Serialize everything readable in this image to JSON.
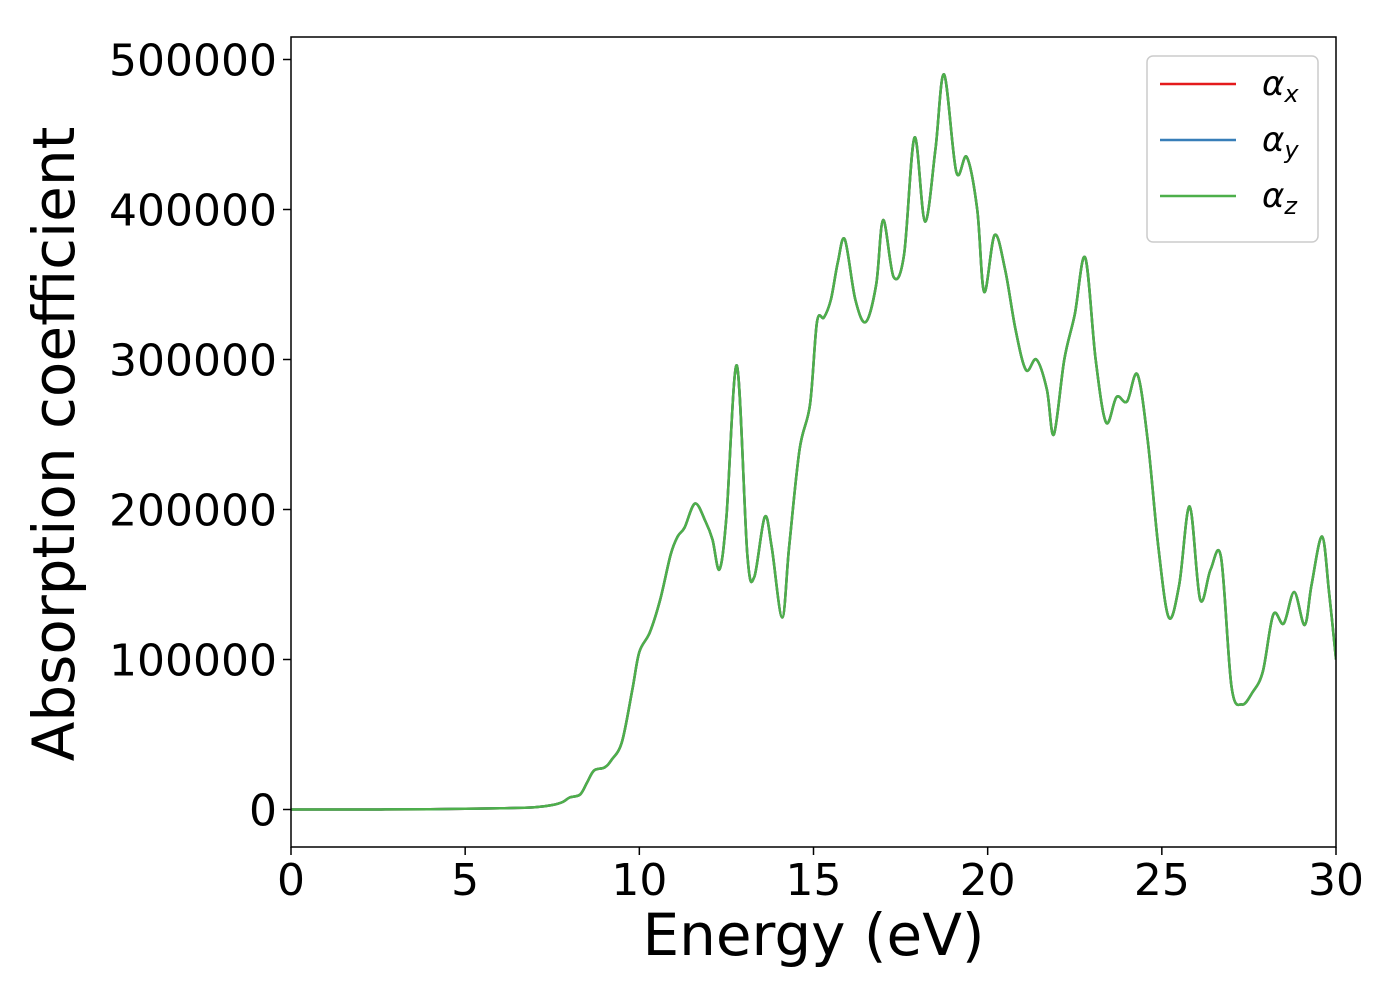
{
  "chart_data": {
    "type": "line",
    "title": "",
    "xlabel": "Energy (eV)",
    "ylabel": "Absorption coefficient",
    "xlim": [
      0,
      30
    ],
    "ylim": [
      -25000,
      515000
    ],
    "xticks": [
      0,
      5,
      10,
      15,
      20,
      25,
      30
    ],
    "xtick_labels": [
      "0",
      "5",
      "10",
      "15",
      "20",
      "25",
      "30"
    ],
    "yticks": [
      0,
      100000,
      200000,
      300000,
      400000,
      500000
    ],
    "ytick_labels": [
      "0",
      "100000",
      "200000",
      "300000",
      "400000",
      "500000"
    ],
    "grid": false,
    "legend_position": "top-right",
    "series": [
      {
        "name": "α_x",
        "label_symbol": "α",
        "label_sub": "x",
        "color": "#e41a1c",
        "x": [
          0,
          2,
          4,
          5,
          6,
          7,
          7.5,
          7.8,
          8.0,
          8.3,
          8.5,
          8.7,
          9.0,
          9.2,
          9.5,
          9.8,
          10.0,
          10.3,
          10.6,
          10.9,
          11.1,
          11.3,
          11.6,
          11.9,
          12.1,
          12.3,
          12.5,
          12.8,
          13.1,
          13.3,
          13.6,
          13.8,
          14.1,
          14.3,
          14.6,
          14.9,
          15.1,
          15.3,
          15.5,
          15.7,
          15.9,
          16.2,
          16.5,
          16.8,
          17.0,
          17.3,
          17.6,
          17.9,
          18.2,
          18.5,
          18.75,
          19.1,
          19.4,
          19.7,
          19.9,
          20.2,
          20.5,
          20.8,
          21.1,
          21.4,
          21.7,
          21.9,
          22.2,
          22.5,
          22.8,
          23.1,
          23.4,
          23.7,
          24.0,
          24.3,
          24.6,
          24.9,
          25.2,
          25.5,
          25.8,
          26.1,
          26.4,
          26.7,
          27.0,
          27.3,
          27.6,
          27.9,
          28.2,
          28.5,
          28.8,
          29.1,
          29.3,
          29.6,
          29.8,
          30.0
        ],
        "values": [
          0,
          0,
          200,
          500,
          800,
          1500,
          3000,
          5000,
          8000,
          10000,
          18000,
          26000,
          28000,
          33000,
          45000,
          80000,
          105000,
          118000,
          140000,
          170000,
          182000,
          188000,
          204000,
          192000,
          180000,
          160000,
          195000,
          296000,
          170000,
          155000,
          195000,
          175000,
          128000,
          175000,
          240000,
          270000,
          325000,
          328000,
          340000,
          365000,
          380000,
          340000,
          325000,
          350000,
          393000,
          355000,
          370000,
          448000,
          392000,
          440000,
          490000,
          425000,
          435000,
          400000,
          345000,
          383000,
          360000,
          320000,
          293000,
          300000,
          280000,
          250000,
          300000,
          330000,
          368000,
          300000,
          258000,
          275000,
          272000,
          290000,
          245000,
          175000,
          128000,
          150000,
          202000,
          140000,
          160000,
          168000,
          82000,
          70000,
          78000,
          92000,
          130000,
          124000,
          145000,
          123000,
          150000,
          182000,
          145000,
          100000
        ]
      },
      {
        "name": "α_y",
        "label_symbol": "α",
        "label_sub": "y",
        "color": "#377eb8",
        "x": [
          0,
          2,
          4,
          5,
          6,
          7,
          7.5,
          7.8,
          8.0,
          8.3,
          8.5,
          8.7,
          9.0,
          9.2,
          9.5,
          9.8,
          10.0,
          10.3,
          10.6,
          10.9,
          11.1,
          11.3,
          11.6,
          11.9,
          12.1,
          12.3,
          12.5,
          12.8,
          13.1,
          13.3,
          13.6,
          13.8,
          14.1,
          14.3,
          14.6,
          14.9,
          15.1,
          15.3,
          15.5,
          15.7,
          15.9,
          16.2,
          16.5,
          16.8,
          17.0,
          17.3,
          17.6,
          17.9,
          18.2,
          18.5,
          18.75,
          19.1,
          19.4,
          19.7,
          19.9,
          20.2,
          20.5,
          20.8,
          21.1,
          21.4,
          21.7,
          21.9,
          22.2,
          22.5,
          22.8,
          23.1,
          23.4,
          23.7,
          24.0,
          24.3,
          24.6,
          24.9,
          25.2,
          25.5,
          25.8,
          26.1,
          26.4,
          26.7,
          27.0,
          27.3,
          27.6,
          27.9,
          28.2,
          28.5,
          28.8,
          29.1,
          29.3,
          29.6,
          29.8,
          30.0
        ],
        "values": [
          0,
          0,
          200,
          500,
          800,
          1500,
          3000,
          5000,
          8000,
          10000,
          18000,
          26000,
          28000,
          33000,
          45000,
          80000,
          105000,
          118000,
          140000,
          170000,
          182000,
          188000,
          204000,
          192000,
          180000,
          160000,
          195000,
          296000,
          170000,
          155000,
          195000,
          175000,
          128000,
          175000,
          240000,
          270000,
          325000,
          328000,
          340000,
          365000,
          380000,
          340000,
          325000,
          350000,
          393000,
          355000,
          370000,
          448000,
          392000,
          440000,
          490000,
          425000,
          435000,
          400000,
          345000,
          383000,
          360000,
          320000,
          293000,
          300000,
          280000,
          250000,
          300000,
          330000,
          368000,
          300000,
          258000,
          275000,
          272000,
          290000,
          245000,
          175000,
          128000,
          150000,
          202000,
          140000,
          160000,
          168000,
          82000,
          70000,
          78000,
          92000,
          130000,
          124000,
          145000,
          123000,
          150000,
          182000,
          145000,
          100000
        ]
      },
      {
        "name": "α_z",
        "label_symbol": "α",
        "label_sub": "z",
        "color": "#4daf4a",
        "x": [
          0,
          2,
          4,
          5,
          6,
          7,
          7.5,
          7.8,
          8.0,
          8.3,
          8.5,
          8.7,
          9.0,
          9.2,
          9.5,
          9.8,
          10.0,
          10.3,
          10.6,
          10.9,
          11.1,
          11.3,
          11.6,
          11.9,
          12.1,
          12.3,
          12.5,
          12.8,
          13.1,
          13.3,
          13.6,
          13.8,
          14.1,
          14.3,
          14.6,
          14.9,
          15.1,
          15.3,
          15.5,
          15.7,
          15.9,
          16.2,
          16.5,
          16.8,
          17.0,
          17.3,
          17.6,
          17.9,
          18.2,
          18.5,
          18.75,
          19.1,
          19.4,
          19.7,
          19.9,
          20.2,
          20.5,
          20.8,
          21.1,
          21.4,
          21.7,
          21.9,
          22.2,
          22.5,
          22.8,
          23.1,
          23.4,
          23.7,
          24.0,
          24.3,
          24.6,
          24.9,
          25.2,
          25.5,
          25.8,
          26.1,
          26.4,
          26.7,
          27.0,
          27.3,
          27.6,
          27.9,
          28.2,
          28.5,
          28.8,
          29.1,
          29.3,
          29.6,
          29.8,
          30.0
        ],
        "values": [
          0,
          0,
          200,
          500,
          800,
          1500,
          3000,
          5000,
          8000,
          10000,
          18000,
          26000,
          28000,
          33000,
          45000,
          80000,
          105000,
          118000,
          140000,
          170000,
          182000,
          188000,
          204000,
          192000,
          180000,
          160000,
          195000,
          296000,
          170000,
          155000,
          195000,
          175000,
          128000,
          175000,
          240000,
          270000,
          325000,
          328000,
          340000,
          365000,
          380000,
          340000,
          325000,
          350000,
          393000,
          355000,
          370000,
          448000,
          392000,
          440000,
          490000,
          425000,
          435000,
          400000,
          345000,
          383000,
          360000,
          320000,
          293000,
          300000,
          280000,
          250000,
          300000,
          330000,
          368000,
          300000,
          258000,
          275000,
          272000,
          290000,
          245000,
          175000,
          128000,
          150000,
          202000,
          140000,
          160000,
          168000,
          82000,
          70000,
          78000,
          92000,
          130000,
          124000,
          145000,
          123000,
          150000,
          182000,
          145000,
          100000
        ]
      }
    ]
  }
}
